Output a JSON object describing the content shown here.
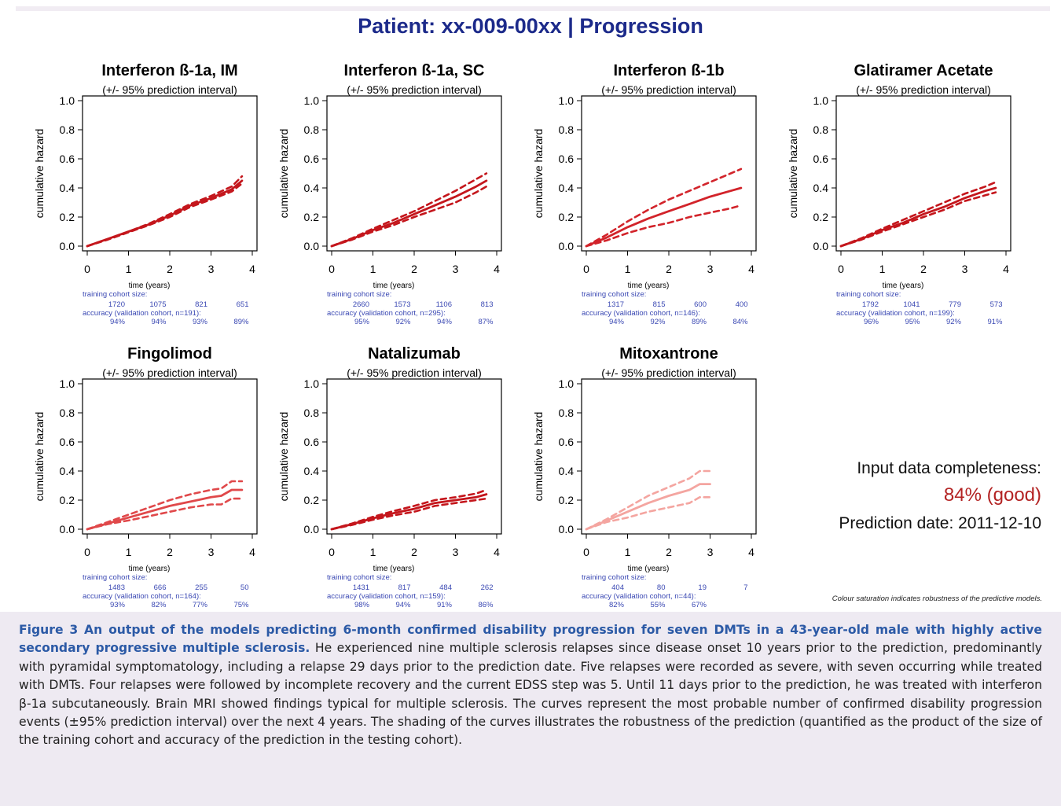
{
  "title": "Patient: xx-009-00xx  | Progression",
  "info": {
    "completeness_label": "Input data completeness:",
    "completeness_value": "84%  (good)",
    "prediction_date": "Prediction date: 2011-12-10",
    "footnote": "Colour saturation indicates robustness of the predictive models."
  },
  "caption": {
    "heading": "Figure 3  An output of the models predicting 6-month confirmed disability progression for seven DMTs in a 43-year-old male with highly active secondary progressive multiple sclerosis.",
    "body": " He experienced nine multiple sclerosis relapses since disease onset 10 years prior to the prediction, predominantly with pyramidal symptomatology, including a relapse 29 days prior to the prediction date. Five relapses were recorded as severe, with seven occurring while treated with DMTs. Four relapses were followed by incomplete recovery and the current EDSS step was 5. Until 11 days prior to the prediction, he was treated with interferon β-1a subcutaneously. Brain MRI showed findings typical for multiple sclerosis. The curves represent the most probable number of confirmed disability progression events (±95% prediction interval) over the next 4 years. The shading of the curves illustrates the robustness of the prediction (quantified as the product of the size of the training cohort and accuracy of the prediction in the testing cohort)."
  },
  "chart_data": [
    {
      "type": "line",
      "title": "Interferon ß-1a, IM",
      "subtitle": "(+/- 95% prediction interval)",
      "xlabel": "time (years)",
      "ylabel": "cumulative hazard",
      "xlim": [
        0,
        4
      ],
      "ylim": [
        0,
        1
      ],
      "xticks": [
        0,
        1,
        2,
        3,
        4
      ],
      "yticks": [
        "0.0",
        "0.2",
        "0.4",
        "0.6",
        "0.8",
        "1.0"
      ],
      "color": "#c4161c",
      "x": [
        0,
        0.5,
        1,
        1.5,
        2,
        2.5,
        3,
        3.5,
        3.75
      ],
      "series": [
        {
          "role": "estimate",
          "values": [
            0,
            0.05,
            0.1,
            0.15,
            0.21,
            0.28,
            0.33,
            0.39,
            0.45
          ]
        },
        {
          "role": "upper",
          "values": [
            0,
            0.05,
            0.1,
            0.155,
            0.22,
            0.29,
            0.345,
            0.41,
            0.48
          ]
        },
        {
          "role": "lower",
          "values": [
            0,
            0.045,
            0.095,
            0.145,
            0.2,
            0.27,
            0.32,
            0.375,
            0.43
          ]
        }
      ],
      "cohort_label": "training cohort size:",
      "cohort_sizes": [
        "1720",
        "1075",
        "821",
        "651"
      ],
      "accuracy_label": "accuracy (validation cohort, n=191):",
      "accuracy": [
        "94%",
        "94%",
        "93%",
        "89%"
      ]
    },
    {
      "type": "line",
      "title": "Interferon ß-1a, SC",
      "subtitle": "(+/- 95% prediction interval)",
      "xlabel": "time (years)",
      "ylabel": "cumulative hazard",
      "xlim": [
        0,
        4
      ],
      "ylim": [
        0,
        1
      ],
      "xticks": [
        0,
        1,
        2,
        3,
        4
      ],
      "yticks": [
        "0.0",
        "0.2",
        "0.4",
        "0.6",
        "0.8",
        "1.0"
      ],
      "color": "#c4161c",
      "x": [
        0,
        0.5,
        1,
        1.5,
        2,
        2.5,
        3,
        3.5,
        3.75
      ],
      "series": [
        {
          "role": "estimate",
          "values": [
            0,
            0.05,
            0.11,
            0.16,
            0.22,
            0.28,
            0.34,
            0.41,
            0.45
          ]
        },
        {
          "role": "upper",
          "values": [
            0,
            0.055,
            0.12,
            0.18,
            0.24,
            0.31,
            0.38,
            0.46,
            0.5
          ]
        },
        {
          "role": "lower",
          "values": [
            0,
            0.045,
            0.1,
            0.145,
            0.2,
            0.25,
            0.3,
            0.37,
            0.41
          ]
        }
      ],
      "cohort_label": "training cohort size:",
      "cohort_sizes": [
        "2660",
        "1573",
        "1106",
        "813"
      ],
      "accuracy_label": "accuracy (validation cohort, n=295):",
      "accuracy": [
        "95%",
        "92%",
        "94%",
        "87%"
      ]
    },
    {
      "type": "line",
      "title": "Interferon ß-1b",
      "subtitle": "(+/- 95% prediction interval)",
      "xlabel": "time (years)",
      "ylabel": "cumulative hazard",
      "xlim": [
        0,
        4
      ],
      "ylim": [
        0,
        1
      ],
      "xticks": [
        0,
        1,
        2,
        3,
        4
      ],
      "yticks": [
        "0.0",
        "0.2",
        "0.4",
        "0.6",
        "0.8",
        "1.0"
      ],
      "color": "#d2232a",
      "x": [
        0,
        0.5,
        1,
        1.5,
        2,
        2.5,
        3,
        3.5,
        3.75
      ],
      "series": [
        {
          "role": "estimate",
          "values": [
            0,
            0.06,
            0.13,
            0.19,
            0.24,
            0.29,
            0.34,
            0.38,
            0.4
          ]
        },
        {
          "role": "upper",
          "values": [
            0,
            0.08,
            0.17,
            0.25,
            0.32,
            0.38,
            0.44,
            0.5,
            0.53
          ]
        },
        {
          "role": "lower",
          "values": [
            0,
            0.04,
            0.09,
            0.13,
            0.16,
            0.2,
            0.23,
            0.26,
            0.28
          ]
        }
      ],
      "cohort_label": "training cohort size:",
      "cohort_sizes": [
        "1317",
        "815",
        "600",
        "400"
      ],
      "accuracy_label": "accuracy (validation cohort, n=146):",
      "accuracy": [
        "94%",
        "92%",
        "89%",
        "84%"
      ]
    },
    {
      "type": "line",
      "title": "Glatiramer Acetate",
      "subtitle": "(+/- 95% prediction interval)",
      "xlabel": "time (years)",
      "ylabel": "cumulative hazard",
      "xlim": [
        0,
        4
      ],
      "ylim": [
        0,
        1
      ],
      "xticks": [
        0,
        1,
        2,
        3,
        4
      ],
      "yticks": [
        "0.0",
        "0.2",
        "0.4",
        "0.6",
        "0.8",
        "1.0"
      ],
      "color": "#c4161c",
      "x": [
        0,
        0.5,
        1,
        1.5,
        2,
        2.5,
        3,
        3.5,
        3.75
      ],
      "series": [
        {
          "role": "estimate",
          "values": [
            0,
            0.05,
            0.11,
            0.16,
            0.22,
            0.27,
            0.33,
            0.38,
            0.4
          ]
        },
        {
          "role": "upper",
          "values": [
            0,
            0.055,
            0.12,
            0.18,
            0.24,
            0.3,
            0.36,
            0.41,
            0.44
          ]
        },
        {
          "role": "lower",
          "values": [
            0,
            0.045,
            0.1,
            0.15,
            0.2,
            0.25,
            0.31,
            0.35,
            0.37
          ]
        }
      ],
      "cohort_label": "training cohort size:",
      "cohort_sizes": [
        "1792",
        "1041",
        "779",
        "573"
      ],
      "accuracy_label": "accuracy (validation cohort, n=199):",
      "accuracy": [
        "96%",
        "95%",
        "92%",
        "91%"
      ]
    },
    {
      "type": "line",
      "title": "Fingolimod",
      "subtitle": "(+/- 95% prediction interval)",
      "xlabel": "time (years)",
      "ylabel": "cumulative hazard",
      "xlim": [
        0,
        4
      ],
      "ylim": [
        0,
        1
      ],
      "xticks": [
        0,
        1,
        2,
        3,
        4
      ],
      "yticks": [
        "0.0",
        "0.2",
        "0.4",
        "0.6",
        "0.8",
        "1.0"
      ],
      "color": "#e0484a",
      "x": [
        0,
        0.5,
        1,
        1.5,
        2,
        2.5,
        3,
        3.25,
        3.5,
        3.75
      ],
      "series": [
        {
          "role": "estimate",
          "values": [
            0,
            0.04,
            0.08,
            0.12,
            0.16,
            0.19,
            0.22,
            0.23,
            0.27,
            0.27
          ]
        },
        {
          "role": "upper",
          "values": [
            0,
            0.05,
            0.1,
            0.15,
            0.2,
            0.24,
            0.27,
            0.28,
            0.33,
            0.33
          ]
        },
        {
          "role": "lower",
          "values": [
            0,
            0.035,
            0.06,
            0.09,
            0.12,
            0.15,
            0.17,
            0.17,
            0.21,
            0.21
          ]
        }
      ],
      "cohort_label": "training cohort size:",
      "cohort_sizes": [
        "1483",
        "666",
        "255",
        "50"
      ],
      "accuracy_label": "accuracy (validation cohort, n=164):",
      "accuracy": [
        "93%",
        "82%",
        "77%",
        "75%"
      ]
    },
    {
      "type": "line",
      "title": "Natalizumab",
      "subtitle": "(+/- 95% prediction interval)",
      "xlabel": "time (years)",
      "ylabel": "cumulative hazard",
      "xlim": [
        0,
        4
      ],
      "ylim": [
        0,
        1
      ],
      "xticks": [
        0,
        1,
        2,
        3,
        4
      ],
      "yticks": [
        "0.0",
        "0.2",
        "0.4",
        "0.6",
        "0.8",
        "1.0"
      ],
      "color": "#c4161c",
      "x": [
        0,
        0.5,
        1,
        1.5,
        2,
        2.5,
        3,
        3.5,
        3.75
      ],
      "series": [
        {
          "role": "estimate",
          "values": [
            0,
            0.035,
            0.075,
            0.11,
            0.14,
            0.18,
            0.2,
            0.22,
            0.24
          ]
        },
        {
          "role": "upper",
          "values": [
            0,
            0.04,
            0.085,
            0.125,
            0.16,
            0.2,
            0.22,
            0.245,
            0.27
          ]
        },
        {
          "role": "lower",
          "values": [
            0,
            0.03,
            0.065,
            0.095,
            0.12,
            0.16,
            0.18,
            0.2,
            0.21
          ]
        }
      ],
      "cohort_label": "training cohort size:",
      "cohort_sizes": [
        "1431",
        "817",
        "484",
        "262"
      ],
      "accuracy_label": "accuracy (validation cohort, n=159):",
      "accuracy": [
        "98%",
        "94%",
        "91%",
        "86%"
      ]
    },
    {
      "type": "line",
      "title": "Mitoxantrone",
      "subtitle": "(+/- 95% prediction interval)",
      "xlabel": "time (years)",
      "ylabel": "cumulative hazard",
      "xlim": [
        0,
        4
      ],
      "ylim": [
        0,
        1
      ],
      "xticks": [
        0,
        1,
        2,
        3,
        4
      ],
      "yticks": [
        "0.0",
        "0.2",
        "0.4",
        "0.6",
        "0.8",
        "1.0"
      ],
      "color": "#f4a5a0",
      "x": [
        0,
        0.5,
        1,
        1.5,
        2,
        2.5,
        2.75,
        3
      ],
      "series": [
        {
          "role": "estimate",
          "values": [
            0,
            0.06,
            0.12,
            0.18,
            0.23,
            0.27,
            0.31,
            0.31
          ]
        },
        {
          "role": "upper",
          "values": [
            0,
            0.07,
            0.15,
            0.23,
            0.29,
            0.35,
            0.4,
            0.4
          ]
        },
        {
          "role": "lower",
          "values": [
            0,
            0.05,
            0.08,
            0.12,
            0.15,
            0.18,
            0.22,
            0.22
          ]
        }
      ],
      "cohort_label": "training cohort size:",
      "cohort_sizes": [
        "404",
        "80",
        "19",
        "7"
      ],
      "accuracy_label": "accuracy (validation cohort, n=44):",
      "accuracy": [
        "82%",
        "55%",
        "67%"
      ]
    }
  ]
}
